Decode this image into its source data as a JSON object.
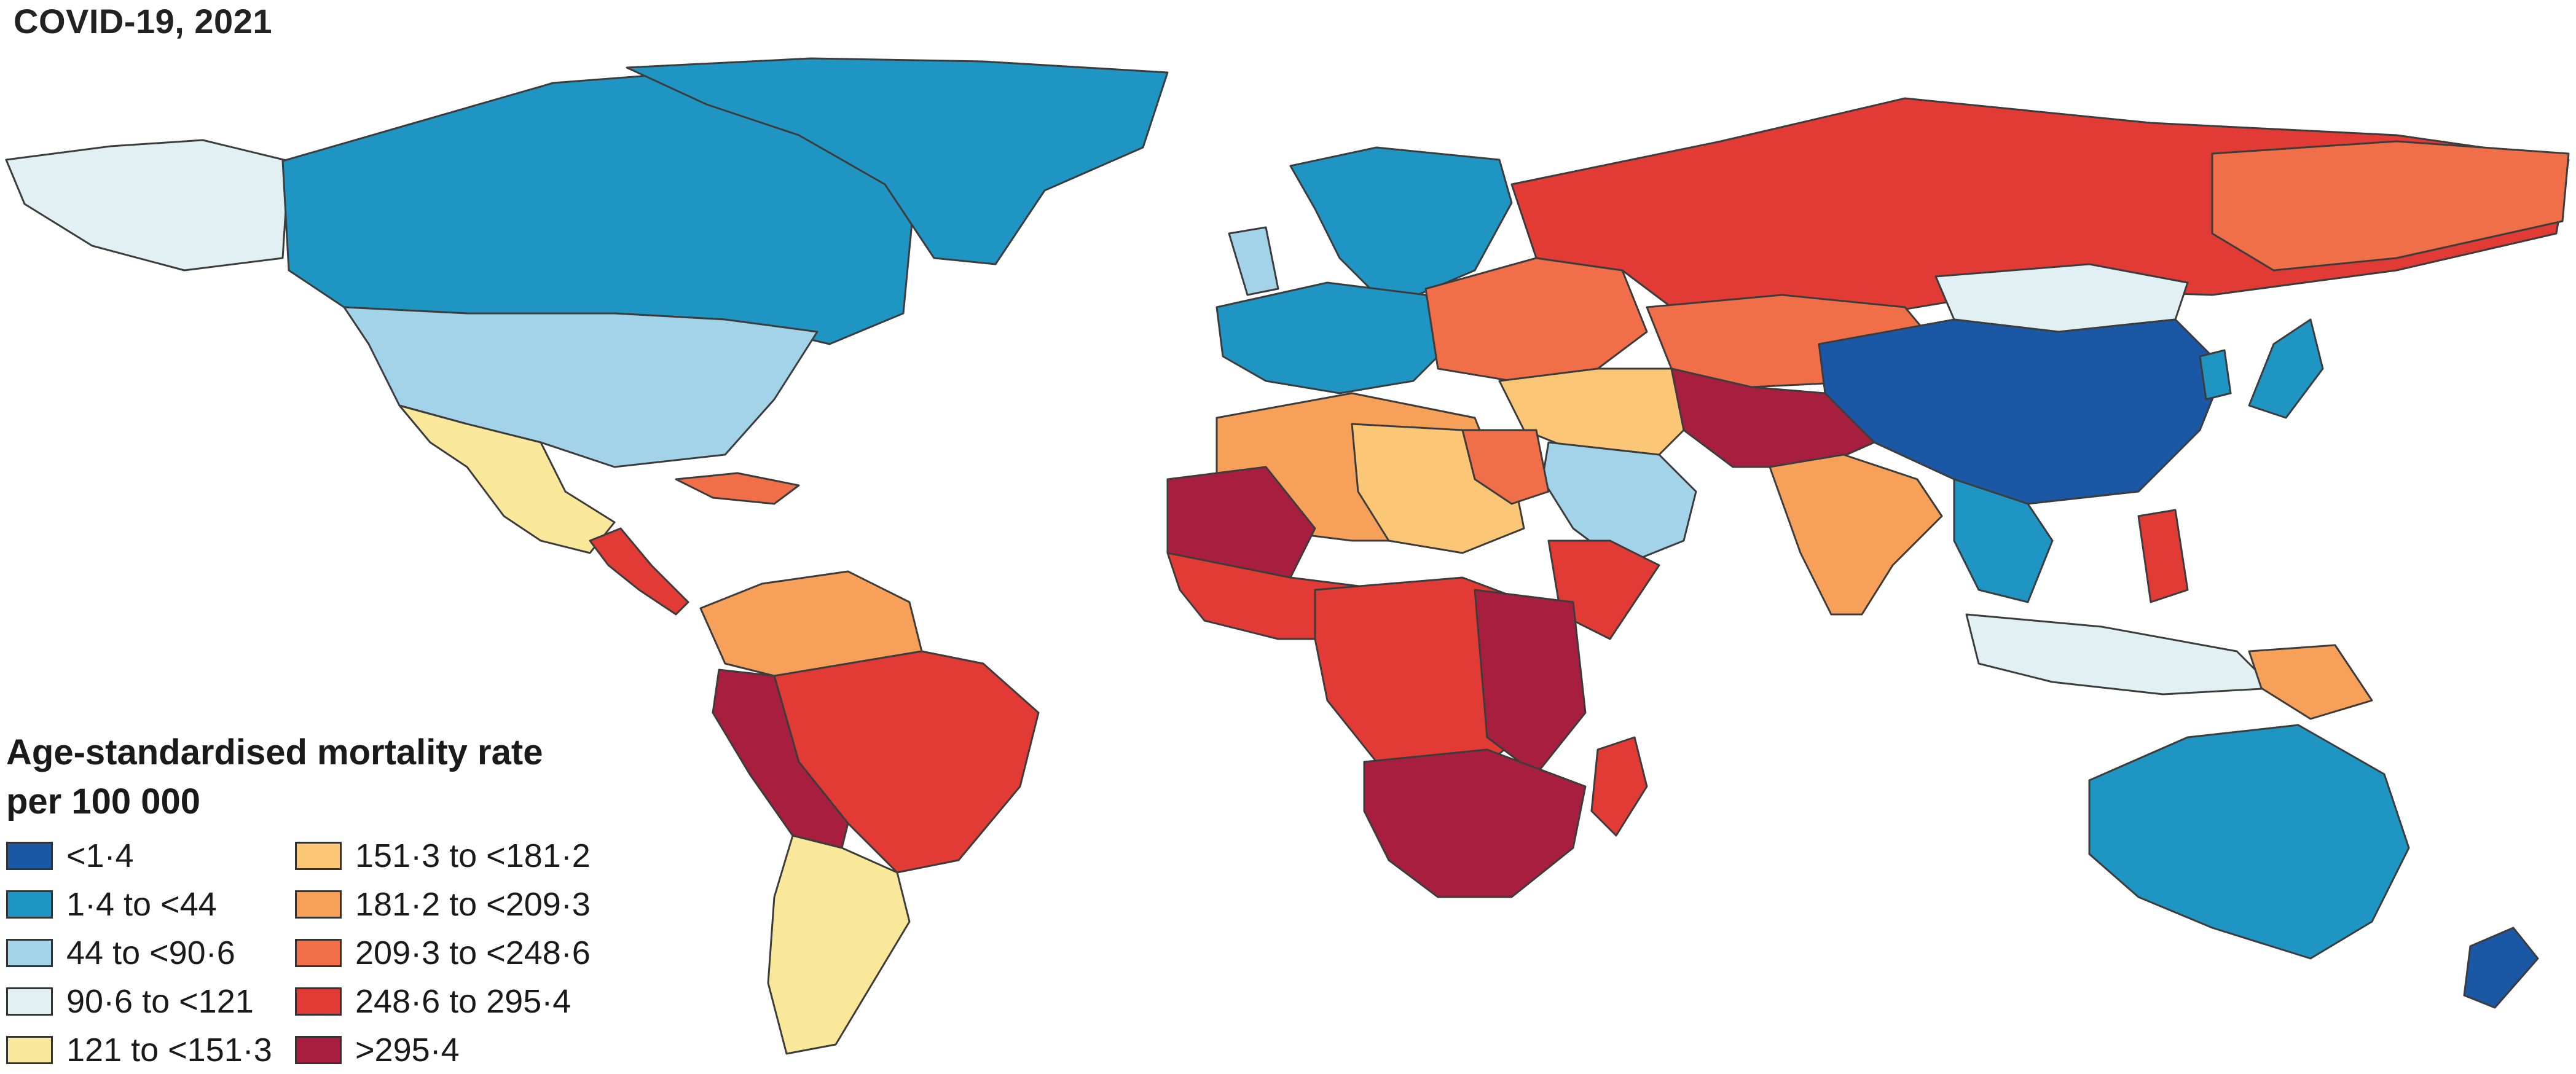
{
  "title": "COVID-19, 2021",
  "legend": {
    "title_line1": "Age-standardised mortality rate",
    "title_line2": "per 100 000",
    "classes": [
      {
        "label": "<1·4",
        "color": "#1a57a5"
      },
      {
        "label": "1·4 to <44",
        "color": "#1f95c4"
      },
      {
        "label": "44 to <90·6",
        "color": "#a3d3e8"
      },
      {
        "label": "90·6 to <121",
        "color": "#e1f1f3"
      },
      {
        "label": "121 to <151·3",
        "color": "#f9e79a"
      },
      {
        "label": "151·3 to <181·2",
        "color": "#fbc675"
      },
      {
        "label": "181·2 to <209·3",
        "color": "#f7a05a"
      },
      {
        "label": "209·3 to <248·6",
        "color": "#f06f48"
      },
      {
        "label": "248·6 to 295·4",
        "color": "#e23a34"
      },
      {
        "label": ">295·4",
        "color": "#a81e3f"
      }
    ],
    "no_data_color": "#9a9a9a"
  },
  "regions": [
    {
      "region": "Alaska",
      "class": 3
    },
    {
      "region": "Canada",
      "class": 1
    },
    {
      "region": "Greenland",
      "class": 1
    },
    {
      "region": "United States",
      "class": 2
    },
    {
      "region": "Mexico",
      "class": 4
    },
    {
      "region": "Central America",
      "class": 8
    },
    {
      "region": "Caribbean",
      "class": 7
    },
    {
      "region": "Colombia / Venezuela",
      "class": 6
    },
    {
      "region": "Brazil",
      "class": 8
    },
    {
      "region": "Peru / Bolivia",
      "class": 9
    },
    {
      "region": "Argentina / Chile",
      "class": 4
    },
    {
      "region": "Iceland / Scandinavia",
      "class": 1
    },
    {
      "region": "Western Europe",
      "class": 1
    },
    {
      "region": "UK",
      "class": 2
    },
    {
      "region": "Eastern Europe",
      "class": 7
    },
    {
      "region": "Russia",
      "class": 8
    },
    {
      "region": "Eastern Russia",
      "class": 7
    },
    {
      "region": "Kazakhstan",
      "class": 7
    },
    {
      "region": "Mongolia",
      "class": 3
    },
    {
      "region": "China",
      "class": 0
    },
    {
      "region": "Japan",
      "class": 1
    },
    {
      "region": "Korea",
      "class": 1
    },
    {
      "region": "Middle East",
      "class": 5
    },
    {
      "region": "Saudi Arabia",
      "class": 2
    },
    {
      "region": "Iran / Afghanistan",
      "class": 9
    },
    {
      "region": "India",
      "class": 6
    },
    {
      "region": "Southeast Asia",
      "class": 1
    },
    {
      "region": "Indonesia",
      "class": 3
    },
    {
      "region": "Philippines",
      "class": 8
    },
    {
      "region": "Papua New Guinea",
      "class": 6
    },
    {
      "region": "Australia",
      "class": 1
    },
    {
      "region": "New Zealand",
      "class": 0
    },
    {
      "region": "North Africa",
      "class": 6
    },
    {
      "region": "Libya / Egypt region",
      "class": 5
    },
    {
      "region": "Egypt",
      "class": 7
    },
    {
      "region": "Mali / West Sahel",
      "class": 9
    },
    {
      "region": "West Africa",
      "class": 8
    },
    {
      "region": "Horn of Africa",
      "class": 8
    },
    {
      "region": "Central Africa",
      "class": 8
    },
    {
      "region": "East Africa",
      "class": 9
    },
    {
      "region": "Southern Africa",
      "class": 9
    },
    {
      "region": "Madagascar",
      "class": 8
    }
  ]
}
